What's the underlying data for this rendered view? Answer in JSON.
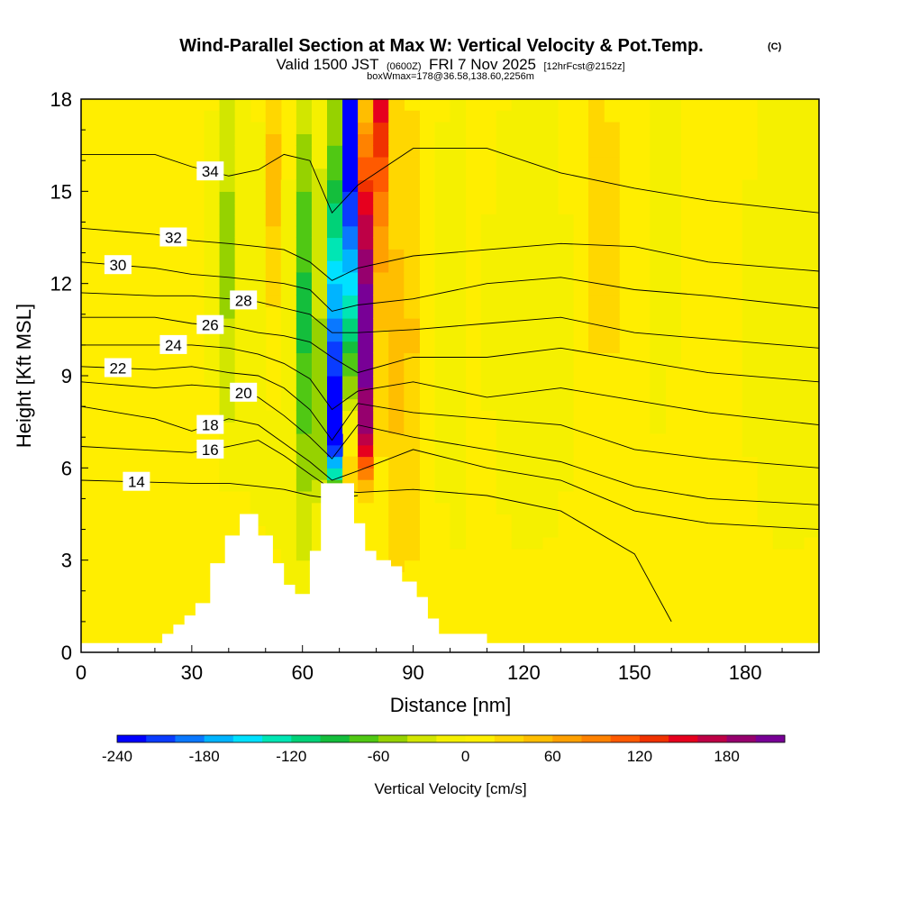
{
  "header": {
    "title": "Wind-Parallel Section at Max W: Vertical Velocity & Pot.Temp.",
    "copyright": "(C)",
    "subtitle_main": "Valid 1500 JST",
    "subtitle_utc": "(0600Z)",
    "subtitle_day": "FRI 7 Nov 2025",
    "subtitle_fcst": "[12hrFcst@2152z]",
    "subtitle_box": "boxWmax=178@36.58,138.60,2256m"
  },
  "chart_data": {
    "type": "heatmap",
    "xlabel": "Distance [nm]",
    "ylabel": "Height [Kft MSL]",
    "xlim": [
      0,
      200
    ],
    "ylim": [
      0,
      18
    ],
    "xticks": [
      "0",
      "30",
      "60",
      "90",
      "120",
      "150",
      "180"
    ],
    "xtick_values": [
      0,
      30,
      60,
      90,
      120,
      150,
      180
    ],
    "yticks": [
      "0",
      "3",
      "6",
      "9",
      "12",
      "15",
      "18"
    ],
    "ytick_values": [
      0,
      3,
      6,
      9,
      12,
      15,
      18
    ],
    "colorbar": {
      "title": "Vertical Velocity [cm/s]",
      "range": [
        -240,
        200
      ],
      "step": 20,
      "tick_labels": [
        "-240",
        "-180",
        "-120",
        "-60",
        "0",
        "60",
        "120",
        "180"
      ],
      "tick_values": [
        -240,
        -180,
        -120,
        -60,
        0,
        60,
        120,
        180
      ],
      "colors": [
        "#0000ff",
        "#0a3cff",
        "#0a78ff",
        "#00b4ff",
        "#00e1ff",
        "#00e6b4",
        "#00d278",
        "#14be3c",
        "#50c814",
        "#96d200",
        "#d2e600",
        "#f5f000",
        "#fff000",
        "#ffd700",
        "#ffbe00",
        "#ffa000",
        "#ff8200",
        "#ff5a00",
        "#f03200",
        "#e6001e",
        "#be0046",
        "#96006e",
        "#780096"
      ]
    },
    "terrain_profile": {
      "x": [
        0,
        22,
        22,
        25,
        25,
        28,
        28,
        31,
        31,
        35,
        35,
        39,
        39,
        43,
        43,
        48,
        48,
        52,
        52,
        55,
        55,
        58,
        58,
        62,
        62,
        65,
        65,
        74,
        74,
        77,
        77,
        80,
        80,
        84,
        84,
        87,
        87,
        91,
        91,
        94,
        94,
        97,
        97,
        110,
        110,
        200
      ],
      "y": [
        0.3,
        0.3,
        0.6,
        0.6,
        0.9,
        0.9,
        1.2,
        1.2,
        1.6,
        1.6,
        2.9,
        2.9,
        3.8,
        3.8,
        4.5,
        4.5,
        3.8,
        3.8,
        2.9,
        2.9,
        2.2,
        2.2,
        1.9,
        1.9,
        3.3,
        3.3,
        5.5,
        5.5,
        4.2,
        4.2,
        3.3,
        3.3,
        3.0,
        3.0,
        2.8,
        2.8,
        2.3,
        2.3,
        1.8,
        1.8,
        1.1,
        1.1,
        0.6,
        0.6,
        0.3,
        0.3
      ]
    },
    "series": [
      {
        "name": "14",
        "x": [
          0,
          30,
          40,
          48,
          55,
          62,
          68,
          75
        ],
        "y": [
          5.6,
          5.5,
          5.5,
          5.4,
          5.3,
          5.1,
          5.0,
          5.1
        ]
      },
      {
        "name": "16",
        "x": [
          0,
          30,
          40,
          48,
          55,
          62,
          68,
          75,
          90,
          110,
          130,
          150,
          160
        ],
        "y": [
          6.7,
          6.5,
          6.7,
          6.9,
          6.4,
          5.8,
          5.3,
          5.2,
          5.3,
          5.1,
          4.6,
          3.2,
          1.0
        ]
      },
      {
        "name": "18",
        "x": [
          0,
          20,
          30,
          40,
          48,
          55,
          62,
          68,
          75,
          90,
          110,
          130,
          150,
          170,
          200
        ],
        "y": [
          8.0,
          7.6,
          7.2,
          7.6,
          7.4,
          6.8,
          6.2,
          5.6,
          5.9,
          6.6,
          6.0,
          5.6,
          4.6,
          4.2,
          4.0
        ]
      },
      {
        "name": "20",
        "x": [
          0,
          20,
          30,
          40,
          48,
          55,
          62,
          68,
          75,
          90,
          110,
          130,
          150,
          170,
          200
        ],
        "y": [
          8.8,
          8.6,
          8.7,
          8.6,
          8.3,
          7.7,
          7.0,
          6.3,
          7.4,
          7.0,
          6.6,
          6.2,
          5.4,
          5.0,
          4.8
        ]
      },
      {
        "name": "22",
        "x": [
          0,
          20,
          30,
          40,
          48,
          55,
          62,
          68,
          75,
          90,
          110,
          130,
          150,
          170,
          200
        ],
        "y": [
          9.3,
          9.2,
          9.3,
          9.1,
          9.0,
          8.6,
          7.9,
          6.9,
          8.1,
          7.8,
          7.6,
          7.4,
          6.6,
          6.3,
          6.0
        ]
      },
      {
        "name": "24",
        "x": [
          0,
          20,
          30,
          40,
          48,
          55,
          62,
          68,
          75,
          90,
          110,
          130,
          150,
          170,
          200
        ],
        "y": [
          10.0,
          10.0,
          10.0,
          9.9,
          9.7,
          9.4,
          8.9,
          7.9,
          8.5,
          8.8,
          8.3,
          8.6,
          8.2,
          7.8,
          7.4
        ]
      },
      {
        "name": "26",
        "x": [
          0,
          20,
          30,
          40,
          48,
          55,
          62,
          68,
          75,
          90,
          110,
          130,
          150,
          170,
          200
        ],
        "y": [
          10.9,
          10.9,
          10.7,
          10.6,
          10.4,
          10.3,
          10.1,
          9.6,
          9.1,
          9.6,
          9.6,
          9.9,
          9.5,
          9.1,
          8.8
        ]
      },
      {
        "name": "28",
        "x": [
          0,
          20,
          30,
          40,
          48,
          55,
          62,
          68,
          75,
          90,
          110,
          130,
          150,
          170,
          200
        ],
        "y": [
          11.7,
          11.6,
          11.6,
          11.5,
          11.4,
          11.2,
          11.0,
          10.4,
          10.4,
          10.5,
          10.7,
          10.9,
          10.4,
          10.2,
          9.9
        ]
      },
      {
        "name": "30",
        "x": [
          0,
          20,
          30,
          40,
          48,
          55,
          62,
          68,
          75,
          90,
          110,
          130,
          150,
          170,
          200
        ],
        "y": [
          12.7,
          12.5,
          12.3,
          12.2,
          12.1,
          12.0,
          11.8,
          11.1,
          11.3,
          11.5,
          12.0,
          12.2,
          11.8,
          11.6,
          11.2
        ]
      },
      {
        "name": "32",
        "x": [
          0,
          20,
          30,
          40,
          48,
          55,
          62,
          68,
          75,
          90,
          110,
          130,
          150,
          170,
          200
        ],
        "y": [
          13.8,
          13.6,
          13.4,
          13.3,
          13.2,
          13.1,
          12.7,
          12.1,
          12.5,
          12.9,
          13.1,
          13.3,
          13.2,
          12.7,
          12.4
        ]
      },
      {
        "name": "34",
        "x": [
          0,
          20,
          30,
          40,
          48,
          55,
          62,
          68,
          75,
          90,
          110,
          130,
          150,
          170,
          200
        ],
        "y": [
          16.2,
          16.2,
          15.8,
          15.5,
          15.7,
          16.2,
          16.0,
          14.3,
          15.2,
          16.4,
          16.4,
          15.6,
          15.1,
          14.7,
          14.3
        ]
      }
    ]
  }
}
